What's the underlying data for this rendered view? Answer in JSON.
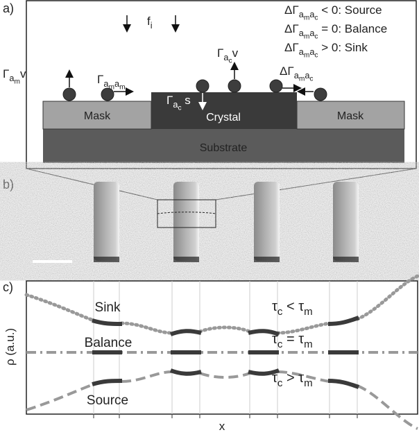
{
  "panel_a": {
    "label": "a)",
    "flux": [
      {
        "normal": "f"
      },
      {
        "sub": "i"
      }
    ],
    "legend": [
      [
        {
          "normal": "ΔΓ"
        },
        {
          "sub": "a"
        },
        {
          "subsub": "m"
        },
        {
          "sub": "a"
        },
        {
          "subsub": "c"
        },
        {
          "normal": " < 0: Source"
        }
      ],
      [
        {
          "normal": "ΔΓ"
        },
        {
          "sub": "a"
        },
        {
          "subsub": "m"
        },
        {
          "sub": "a"
        },
        {
          "subsub": "c"
        },
        {
          "normal": " = 0: Balance"
        }
      ],
      [
        {
          "normal": "ΔΓ"
        },
        {
          "sub": "a"
        },
        {
          "subsub": "m"
        },
        {
          "sub": "a"
        },
        {
          "subsub": "c"
        },
        {
          "normal": " > 0: Sink"
        }
      ]
    ],
    "rates": {
      "desorption_mask": [
        {
          "normal": "Γ"
        },
        {
          "sub": "a"
        },
        {
          "subsub": "m"
        },
        {
          "normal": "v"
        }
      ],
      "diffusion_mask": [
        {
          "normal": "Γ"
        },
        {
          "sub": "a"
        },
        {
          "subsub": "m"
        },
        {
          "sub": "a"
        },
        {
          "subsub": "m"
        }
      ],
      "incorporation": [
        {
          "normal": "Γ"
        },
        {
          "sub": "a"
        },
        {
          "subsub": "c"
        },
        {
          "normal": " s"
        }
      ],
      "desorption_crystal": [
        {
          "normal": "Γ"
        },
        {
          "sub": "a"
        },
        {
          "subsub": "c"
        },
        {
          "normal": "v"
        }
      ],
      "exchange": [
        {
          "normal": "ΔΓ"
        },
        {
          "sub": "a"
        },
        {
          "subsub": "m"
        },
        {
          "sub": "a"
        },
        {
          "subsub": "c"
        }
      ]
    },
    "layers": {
      "mask_left": "Mask",
      "crystal": "Crystal",
      "mask_right": "Mask",
      "substrate": "Substrate"
    }
  },
  "panel_b": {
    "label": "b)"
  },
  "panel_c": {
    "label": "c)",
    "y_label": "ρ (a.u.)",
    "x_label": "x",
    "curves": {
      "sink": "Sink",
      "balance": "Balance",
      "source": "Source"
    },
    "conditions": [
      [
        {
          "normal": "τ"
        },
        {
          "sub": "c"
        },
        {
          "normal": " < τ"
        },
        {
          "sub": "m"
        }
      ],
      [
        {
          "normal": "τ"
        },
        {
          "sub": "c"
        },
        {
          "normal": " = τ"
        },
        {
          "sub": "m"
        }
      ],
      [
        {
          "normal": "τ"
        },
        {
          "sub": "c"
        },
        {
          "normal": " > τ"
        },
        {
          "sub": "m"
        }
      ]
    ]
  }
}
